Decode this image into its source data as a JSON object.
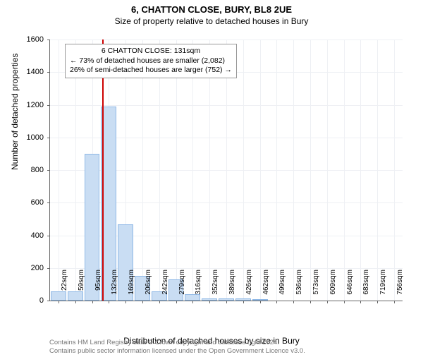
{
  "title": "6, CHATTON CLOSE, BURY, BL8 2UE",
  "subtitle": "Size of property relative to detached houses in Bury",
  "ylabel": "Number of detached properties",
  "xlabel": "Distribution of detached houses by size in Bury",
  "chart": {
    "type": "histogram",
    "ylim": [
      0,
      1600
    ],
    "ytick_step": 200,
    "background_color": "#ffffff",
    "grid_color": "#eef0f4",
    "bar_fill": "#c9ddf3",
    "bar_border": "#8fb8e6",
    "marker_color": "#cc0000",
    "marker_x_value": 131,
    "x_categories": [
      "22sqm",
      "59sqm",
      "95sqm",
      "132sqm",
      "169sqm",
      "206sqm",
      "242sqm",
      "279sqm",
      "316sqm",
      "352sqm",
      "389sqm",
      "426sqm",
      "462sqm",
      "499sqm",
      "536sqm",
      "573sqm",
      "609sqm",
      "646sqm",
      "683sqm",
      "719sqm",
      "756sqm"
    ],
    "values": [
      55,
      55,
      900,
      1190,
      465,
      150,
      55,
      130,
      40,
      15,
      15,
      15,
      5,
      0,
      0,
      0,
      0,
      0,
      0,
      0,
      0
    ]
  },
  "annotation": {
    "line1": "6 CHATTON CLOSE: 131sqm",
    "line2": "← 73% of detached houses are smaller (2,082)",
    "line3": "26% of semi-detached houses are larger (752) →",
    "border_color": "#999999",
    "fontsize": 10.5
  },
  "footer": {
    "line1": "Contains HM Land Registry data © Crown copyright and database right 2024.",
    "line2": "Contains public sector information licensed under the Open Government Licence v3.0.",
    "color": "#777777",
    "fontsize": 9.5
  }
}
